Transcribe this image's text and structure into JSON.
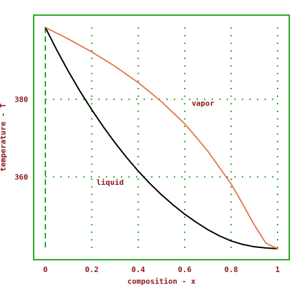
{
  "chart_data": {
    "type": "line",
    "xlabel": "composition - x",
    "ylabel": "temperature - T",
    "xlim": [
      0,
      1
    ],
    "ylim": [
      341.5,
      398.5
    ],
    "x_ticks": [
      {
        "value": 0,
        "label": "0"
      },
      {
        "value": 0.2,
        "label": "0.2"
      },
      {
        "value": 0.4,
        "label": "0.4"
      },
      {
        "value": 0.6,
        "label": "0.6"
      },
      {
        "value": 0.8,
        "label": "0.8"
      },
      {
        "value": 1,
        "label": "1"
      }
    ],
    "y_ticks": [
      {
        "value": 360,
        "label": "360"
      },
      {
        "value": 380,
        "label": "380"
      }
    ],
    "grid": true,
    "frame_color": "#22aa22",
    "grid_color": "#22aa22",
    "series": [
      {
        "name": "liquid",
        "color": "#000000",
        "x": [
          0,
          0.05,
          0.1,
          0.15,
          0.2,
          0.25,
          0.3,
          0.35,
          0.4,
          0.45,
          0.5,
          0.55,
          0.6,
          0.65,
          0.7,
          0.75,
          0.8,
          0.85,
          0.9,
          0.95,
          1
        ],
        "y": [
          398.5,
          392.6,
          387.1,
          382.0,
          377.3,
          372.9,
          368.8,
          365.0,
          361.5,
          358.3,
          355.4,
          352.8,
          350.4,
          348.3,
          346.4,
          344.8,
          343.5,
          342.6,
          342.0,
          341.7,
          341.5
        ]
      },
      {
        "name": "vapor",
        "color": "#e8704a",
        "x": [
          0,
          0.1,
          0.2,
          0.3,
          0.4,
          0.5,
          0.6,
          0.65,
          0.7,
          0.75,
          0.8,
          0.85,
          0.9,
          0.95,
          1
        ],
        "y": [
          398.5,
          395.5,
          392.2,
          388.5,
          384.3,
          379.4,
          373.7,
          370.2,
          366.6,
          362.4,
          358.2,
          353.0,
          347.6,
          342.9,
          341.5
        ]
      }
    ],
    "annotations": [
      {
        "text": "vapor",
        "x": 0.63,
        "y": 378.3
      },
      {
        "text": "liquid",
        "x": 0.22,
        "y": 358.0
      }
    ]
  }
}
